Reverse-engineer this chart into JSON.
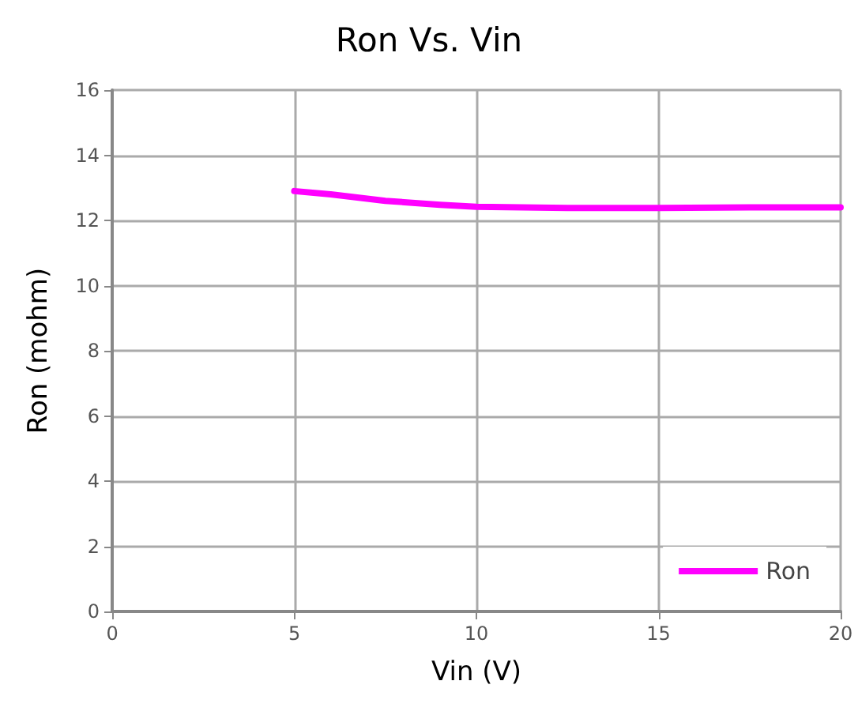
{
  "chart_data": {
    "type": "line",
    "title": "Ron Vs. Vin",
    "xlabel": "Vin (V)",
    "ylabel": "Ron (mohm)",
    "x": [
      5,
      6,
      7.5,
      9,
      10,
      12.5,
      15,
      17.5,
      20
    ],
    "series": [
      {
        "name": "Ron",
        "color": "#ff00ff",
        "values": [
          12.9,
          12.8,
          12.6,
          12.48,
          12.42,
          12.38,
          12.38,
          12.4,
          12.4
        ]
      }
    ],
    "xlim": [
      0,
      20
    ],
    "xticks": [
      0,
      5,
      10,
      15,
      20
    ],
    "ylim": [
      0,
      16
    ],
    "yticks": [
      0,
      2,
      4,
      6,
      8,
      10,
      12,
      14,
      16
    ],
    "grid": true,
    "legend": "bottom right",
    "marker": "none",
    "line_style": "solid"
  }
}
